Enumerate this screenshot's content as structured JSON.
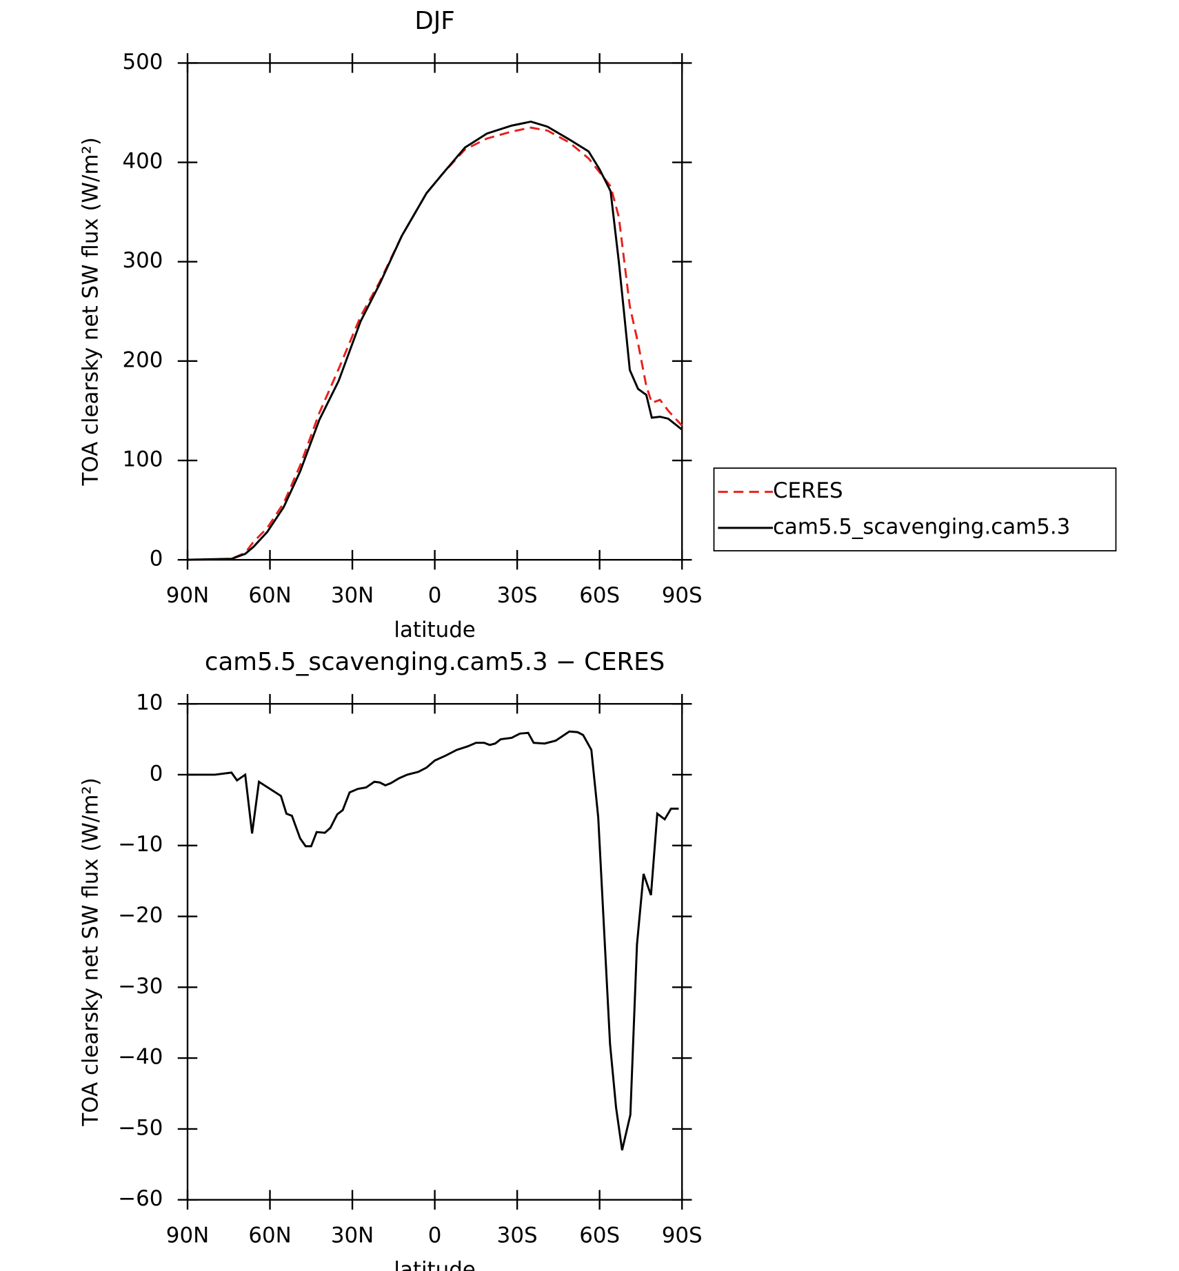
{
  "chart_data": [
    {
      "type": "line",
      "title": "DJF",
      "xlabel": "latitude",
      "ylabel": "TOA clearsky net SW flux (W/m²)",
      "x": [
        90,
        74,
        69,
        66,
        61,
        55,
        49,
        42,
        35,
        27,
        20,
        12,
        3,
        -3,
        -11,
        -19,
        -28,
        -35,
        -41,
        -49,
        -56,
        -60,
        -64,
        -67,
        -69,
        -71,
        -74,
        -77,
        -79,
        -82,
        -85,
        -90
      ],
      "series": [
        {
          "name": "CERES",
          "color": "#e8201c",
          "dashed": true,
          "values": [
            0,
            1,
            7,
            18,
            32,
            57,
            95,
            148,
            192,
            245,
            280,
            326,
            369,
            389,
            413,
            424,
            431,
            435,
            432,
            420,
            404,
            390,
            376,
            345,
            300,
            255,
            218,
            175,
            158,
            161,
            150,
            135
          ]
        },
        {
          "name": "cam5.5_scavenging.cam5.3",
          "color": "#000000",
          "dashed": false,
          "values": [
            0,
            1,
            6,
            13,
            28,
            53,
            89,
            141,
            180,
            240,
            278,
            326,
            369,
            389,
            415,
            429,
            437,
            441,
            436,
            423,
            411,
            393,
            371,
            300,
            246,
            191,
            172,
            166,
            143,
            144,
            142,
            131
          ]
        }
      ],
      "xlim": [
        90,
        -90
      ],
      "xticks": [
        {
          "value": 90,
          "label": "90N"
        },
        {
          "value": 60,
          "label": "60N"
        },
        {
          "value": 30,
          "label": "30N"
        },
        0,
        {
          "value": -30,
          "label": "30S"
        },
        {
          "value": -60,
          "label": "60S"
        },
        {
          "value": -90,
          "label": "90S"
        }
      ],
      "ylim": [
        0,
        500
      ],
      "yticks": [
        0,
        100,
        200,
        300,
        400,
        500
      ],
      "legend": "right"
    },
    {
      "type": "line",
      "title": "cam5.5_scavenging.cam5.3 − CERES",
      "xlabel": "latitude",
      "ylabel": "TOA clearsky net SW flux (W/m²)",
      "x": [
        90,
        80,
        74,
        72,
        69,
        66.5,
        64,
        60,
        56,
        54,
        52,
        49,
        47,
        45,
        43,
        40,
        38,
        35.5,
        33.5,
        31,
        28,
        25,
        22,
        20,
        18,
        16,
        13,
        10,
        6,
        3,
        0,
        -4,
        -8,
        -12,
        -15,
        -18,
        -20,
        -22,
        -24,
        -28,
        -31,
        -34,
        -36,
        -40,
        -44,
        -49,
        -52,
        -54,
        -57,
        -59.5,
        -63.8,
        -66,
        -68.2,
        -71.2,
        -73.6,
        -76,
        -78.7,
        -81,
        -83.7,
        -86,
        -88.8
      ],
      "values": [
        0,
        0,
        0.3,
        -0.8,
        0,
        -8.3,
        -1,
        -2,
        -3,
        -5.5,
        -5.8,
        -9,
        -10.1,
        -10.1,
        -8.1,
        -8.2,
        -7.5,
        -5.6,
        -5,
        -2.5,
        -2,
        -1.8,
        -1,
        -1.1,
        -1.5,
        -1.2,
        -0.5,
        0,
        0.4,
        1,
        2,
        2.7,
        3.5,
        4,
        4.5,
        4.5,
        4.2,
        4.4,
        5,
        5.2,
        5.8,
        5.9,
        4.5,
        4.4,
        4.8,
        6.1,
        6,
        5.6,
        3.5,
        -6,
        -38,
        -47,
        -53,
        -48,
        -24,
        -14,
        -17,
        -5.5,
        -6.3,
        -4.8,
        -4.8
      ],
      "color": "#000000",
      "xlim": [
        90,
        -90
      ],
      "xticks": [
        {
          "value": 90,
          "label": "90N"
        },
        {
          "value": 60,
          "label": "60N"
        },
        {
          "value": 30,
          "label": "30N"
        },
        0,
        {
          "value": -30,
          "label": "30S"
        },
        {
          "value": -60,
          "label": "60S"
        },
        {
          "value": -90,
          "label": "90S"
        }
      ],
      "ylim": [
        -60,
        10
      ],
      "yticks": [
        -60,
        -50,
        -40,
        -30,
        -20,
        -10,
        0,
        10
      ]
    }
  ]
}
